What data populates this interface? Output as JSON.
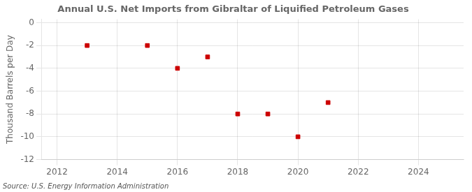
{
  "chart_data": {
    "type": "scatter",
    "title": "Annual U.S. Net Imports from Gibraltar of Liquified Petroleum Gases",
    "ylabel": "Thousand Barrels per Day",
    "annotation": "Source: U.S. Energy Information Administration",
    "x": [
      2013,
      2015,
      2016,
      2017,
      2018,
      2019,
      2020,
      2021
    ],
    "values": [
      -2,
      -2,
      -4,
      -3,
      -8,
      -8,
      -10,
      -7
    ],
    "color": "#cc0000",
    "marker": "square",
    "xlim": [
      2011.5,
      2025.5
    ],
    "ylim": [
      -12,
      0.3
    ],
    "xticks": [
      2012,
      2014,
      2016,
      2018,
      2020,
      2022,
      2024
    ],
    "yticks": [
      0,
      -2,
      -4,
      -6,
      -8,
      -10,
      -12
    ],
    "grid": true
  }
}
